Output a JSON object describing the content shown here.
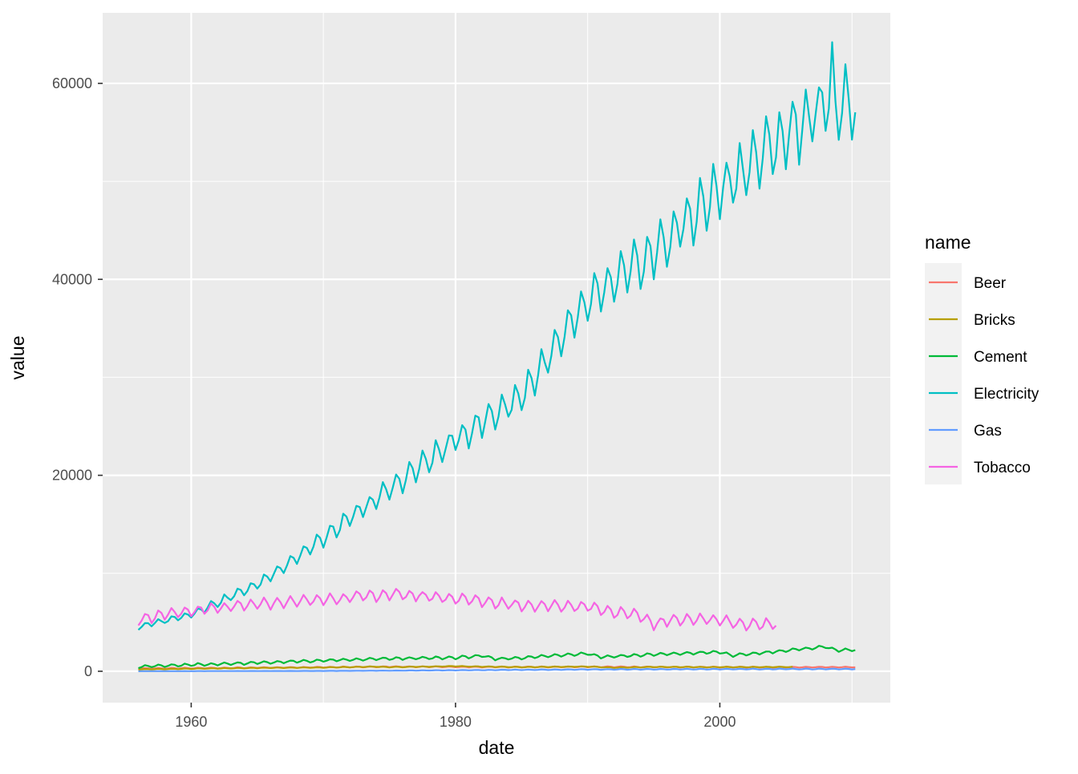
{
  "chart_data": {
    "type": "line",
    "xlabel": "date",
    "ylabel": "value",
    "x_ticks": [
      "1960",
      "1980",
      "2000"
    ],
    "y_ticks": [
      "0",
      "20000",
      "40000",
      "60000"
    ],
    "x_tick_values": [
      1960,
      1980,
      2000
    ],
    "y_tick_values": [
      0,
      20000,
      40000,
      60000
    ],
    "xlim": [
      1953.3,
      2012.9
    ],
    "ylim": [
      -3200,
      67200
    ],
    "grid": true,
    "legend": {
      "title": "name",
      "placement": "right",
      "entries": [
        "Beer",
        "Bricks",
        "Cement",
        "Electricity",
        "Gas",
        "Tobacco"
      ]
    },
    "series": [
      {
        "name": "Beer",
        "color": "#F8766D",
        "x_range": [
          1956.0,
          2010.25
        ],
        "knots": [
          [
            1956,
            284
          ],
          [
            1960,
            310
          ],
          [
            1965,
            360
          ],
          [
            1970,
            410
          ],
          [
            1975,
            470
          ],
          [
            1980,
            440
          ],
          [
            1985,
            430
          ],
          [
            1990,
            450
          ],
          [
            1995,
            430
          ],
          [
            2000,
            420
          ],
          [
            2005,
            410
          ],
          [
            2010,
            420
          ]
        ],
        "seasonal_amplitude": 45
      },
      {
        "name": "Bricks",
        "color": "#B79F00",
        "x_range": [
          1956.0,
          2005.5
        ],
        "knots": [
          [
            1956,
            190
          ],
          [
            1960,
            260
          ],
          [
            1965,
            340
          ],
          [
            1970,
            380
          ],
          [
            1974,
            470
          ],
          [
            1975,
            420
          ],
          [
            1980,
            510
          ],
          [
            1982,
            470
          ],
          [
            1985,
            420
          ],
          [
            1990,
            480
          ],
          [
            1992,
            370
          ],
          [
            1995,
            440
          ],
          [
            2000,
            420
          ],
          [
            2005,
            430
          ]
        ],
        "seasonal_amplitude": 30
      },
      {
        "name": "Cement",
        "color": "#00BA38",
        "x_range": [
          1956.0,
          2010.25
        ],
        "knots": [
          [
            1956,
            470
          ],
          [
            1960,
            640
          ],
          [
            1965,
            860
          ],
          [
            1970,
            1080
          ],
          [
            1975,
            1280
          ],
          [
            1980,
            1380
          ],
          [
            1982,
            1560
          ],
          [
            1983,
            1250
          ],
          [
            1985,
            1360
          ],
          [
            1988,
            1650
          ],
          [
            1990,
            1800
          ],
          [
            1991,
            1450
          ],
          [
            1995,
            1700
          ],
          [
            2000,
            1950
          ],
          [
            2001,
            1600
          ],
          [
            2005,
            2100
          ],
          [
            2008,
            2500
          ],
          [
            2009,
            2100
          ],
          [
            2010,
            2200
          ]
        ],
        "seasonal_amplitude": 140
      },
      {
        "name": "Electricity",
        "color": "#00BFC4",
        "x_range": [
          1956.0,
          2010.25
        ],
        "knots": [
          [
            1956,
            4500
          ],
          [
            1960,
            5800
          ],
          [
            1965,
            8800
          ],
          [
            1970,
            13500
          ],
          [
            1975,
            18500
          ],
          [
            1980,
            23500
          ],
          [
            1985,
            28000
          ],
          [
            1990,
            37500
          ],
          [
            1995,
            42500
          ],
          [
            2000,
            49000
          ],
          [
            2005,
            54500
          ],
          [
            2008,
            57500
          ],
          [
            2010,
            58000
          ]
        ],
        "seasonal_amplitude_fraction": 0.06,
        "spikes": [
          [
            2008.5,
            64200
          ]
        ]
      },
      {
        "name": "Gas",
        "color": "#619CFF",
        "x_range": [
          1956.0,
          2010.25
        ],
        "knots": [
          [
            1956,
            5
          ],
          [
            1970,
            30
          ],
          [
            1975,
            60
          ],
          [
            1980,
            100
          ],
          [
            1985,
            140
          ],
          [
            1990,
            180
          ],
          [
            1995,
            200
          ],
          [
            2000,
            210
          ],
          [
            2005,
            225
          ],
          [
            2010,
            230
          ]
        ],
        "seasonal_amplitude_fraction": 0.2
      },
      {
        "name": "Tobacco",
        "color": "#F564E3",
        "x_range": [
          1956.0,
          2004.25
        ],
        "knots": [
          [
            1956,
            5300
          ],
          [
            1960,
            6100
          ],
          [
            1965,
            6800
          ],
          [
            1970,
            7300
          ],
          [
            1975,
            7800
          ],
          [
            1977,
            7700
          ],
          [
            1980,
            7400
          ],
          [
            1985,
            6700
          ],
          [
            1990,
            6600
          ],
          [
            1992,
            6000
          ],
          [
            1994,
            5600
          ],
          [
            1995,
            4800
          ],
          [
            1997,
            5300
          ],
          [
            2000,
            5200
          ],
          [
            2002,
            4700
          ],
          [
            2004,
            4800
          ]
        ],
        "seasonal_amplitude": 550
      }
    ]
  }
}
